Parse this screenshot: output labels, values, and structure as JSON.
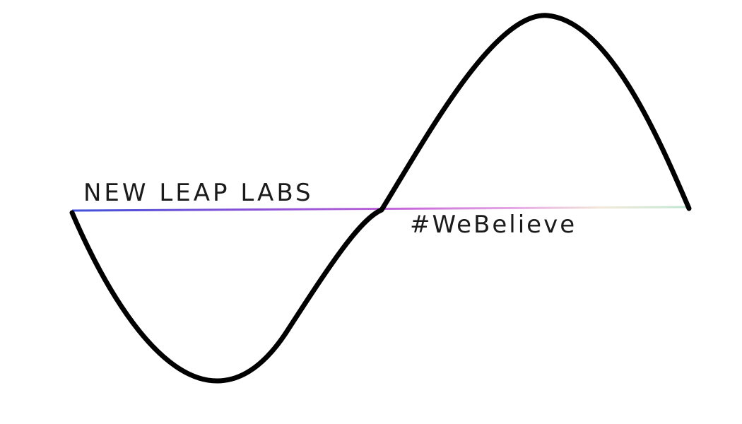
{
  "logo": {
    "brand_name": "NEW LEAP LABS",
    "tagline": "#WeBelieve",
    "wave_icon": "sine-wave-icon",
    "colors": {
      "wave": "#000000",
      "text": "#1b1b1b",
      "background": "#ffffff",
      "baseline_gradient": [
        "#3f51d8",
        "#8a4fd6",
        "#c86ad9",
        "#e7a9e6",
        "#f2e9d6",
        "#bfe6d4"
      ]
    }
  }
}
